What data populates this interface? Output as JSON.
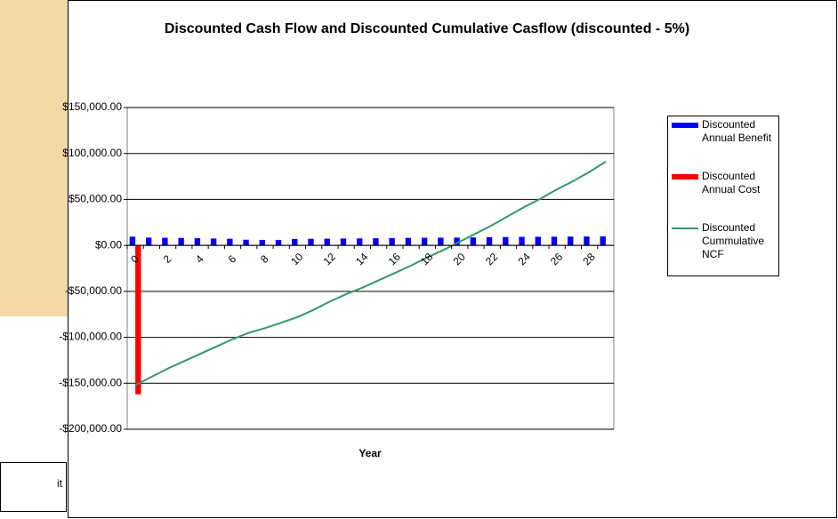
{
  "chart_data": {
    "type": "bar-line",
    "title": "Discounted Cash Flow and Discounted Cumulative Casflow (discounted - 5%)",
    "x_label": "Year",
    "categories": [
      "0",
      null,
      "2",
      null,
      "4",
      null,
      "6",
      null,
      "8",
      null,
      "10",
      null,
      "12",
      null,
      "14",
      null,
      "16",
      null,
      "18",
      null,
      "20",
      null,
      "22",
      null,
      "24",
      null,
      "26",
      null,
      "28",
      null
    ],
    "series": [
      {
        "name": "Discounted Annual Benefit",
        "kind": "bar",
        "color": "#0000ff",
        "values": [
          9500,
          8500,
          8300,
          8100,
          7800,
          7500,
          7200,
          6200,
          6000,
          6000,
          7000,
          7200,
          7300,
          7500,
          7600,
          7800,
          8000,
          8200,
          8300,
          8400,
          8500,
          8700,
          8900,
          9100,
          9300,
          9400,
          9500,
          9600,
          9700,
          9800
        ]
      },
      {
        "name": "Discounted Annual Cost",
        "kind": "bar",
        "color": "#ff0000",
        "values": [
          -162000,
          0,
          0,
          0,
          0,
          0,
          0,
          0,
          0,
          0,
          0,
          0,
          0,
          0,
          0,
          0,
          0,
          0,
          0,
          0,
          0,
          0,
          0,
          0,
          0,
          0,
          0,
          0,
          0,
          0
        ]
      },
      {
        "name": "Discounted Cummulative NCF",
        "kind": "line",
        "color": "#339966",
        "values": [
          -152000,
          -143000,
          -134000,
          -126000,
          -118000,
          -110000,
          -102000,
          -95000,
          -90000,
          -84000,
          -78000,
          -70000,
          -61000,
          -53000,
          -46000,
          -38000,
          -30000,
          -22000,
          -13000,
          -5000,
          4000,
          13000,
          22000,
          32000,
          42000,
          51000,
          61000,
          70000,
          80000,
          91000
        ]
      }
    ],
    "ylim": [
      -200000,
      150000
    ],
    "yticks": [
      {
        "value": -200000,
        "label": "-$200,000.00"
      },
      {
        "value": -150000,
        "label": "-$150,000.00"
      },
      {
        "value": -100000,
        "label": "-$100,000.00"
      },
      {
        "value": -50000,
        "label": "-$50,000.00"
      },
      {
        "value": 0,
        "label": "$0.00"
      },
      {
        "value": 50000,
        "label": "$50,000.00"
      },
      {
        "value": 100000,
        "label": "$100,000.00"
      },
      {
        "value": 150000,
        "label": "$150,000.00"
      }
    ],
    "grid": true,
    "legend": "right"
  },
  "cropped_text": "it"
}
